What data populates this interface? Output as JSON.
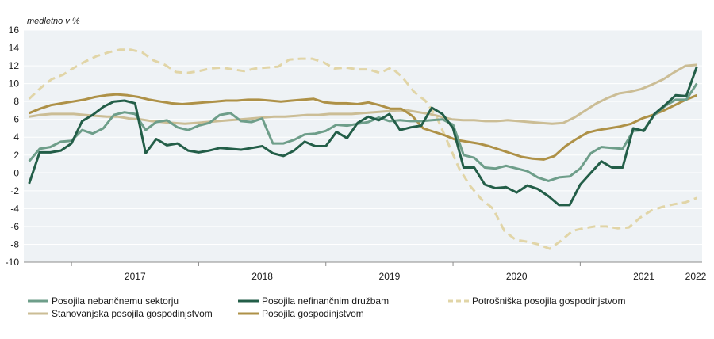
{
  "chart_data": {
    "type": "line",
    "unit_label": "medletno v %",
    "x_tick_labels": [
      "2017",
      "2018",
      "2019",
      "2020",
      "2021",
      "2022"
    ],
    "y_tick_labels": [
      "16",
      "14",
      "12",
      "10",
      "8",
      "6",
      "4",
      "2",
      "0",
      "-2",
      "-4",
      "-6",
      "-8",
      "-10"
    ],
    "ylim": [
      -10,
      16
    ],
    "x_start": "2016-09",
    "x_end": "2021-12",
    "grid": true,
    "legend_position": "bottom",
    "colors": {
      "plot_background": "#eef2f5",
      "grid": "#ffffff"
    },
    "series": [
      {
        "name": "Posojila nebančnemu sektorju",
        "color": "#6e9e8a",
        "dash": "solid",
        "values": [
          1.3,
          2.7,
          2.9,
          3.5,
          3.6,
          4.8,
          4.4,
          5.0,
          6.5,
          6.8,
          6.6,
          4.8,
          5.7,
          5.9,
          5.1,
          4.8,
          5.3,
          5.6,
          6.5,
          6.7,
          5.8,
          5.7,
          6.1,
          3.3,
          3.3,
          3.7,
          4.3,
          4.4,
          4.7,
          5.4,
          5.3,
          5.5,
          5.7,
          6.2,
          5.8,
          5.9,
          5.8,
          5.8,
          5.9,
          6.0,
          5.4,
          2.0,
          1.7,
          0.6,
          0.5,
          0.8,
          0.5,
          0.2,
          -0.5,
          -0.9,
          -0.5,
          -0.4,
          0.5,
          2.2,
          2.9,
          2.8,
          2.7,
          4.7,
          4.8,
          6.5,
          7.5,
          8.2,
          8.2,
          10.0
        ]
      },
      {
        "name": "Posojila nefinančnim družbam",
        "color": "#235e48",
        "dash": "solid",
        "values": [
          -1.2,
          2.3,
          2.3,
          2.5,
          3.3,
          5.8,
          6.5,
          7.4,
          8.0,
          8.1,
          7.8,
          2.2,
          3.8,
          3.1,
          3.3,
          2.5,
          2.3,
          2.5,
          2.8,
          2.7,
          2.6,
          2.8,
          3.0,
          2.2,
          1.9,
          2.5,
          3.5,
          3.0,
          3.0,
          4.6,
          3.9,
          5.6,
          6.3,
          5.9,
          6.6,
          4.8,
          5.1,
          5.3,
          7.3,
          6.6,
          5.0,
          0.6,
          0.6,
          -1.3,
          -1.7,
          -1.6,
          -2.2,
          -1.4,
          -1.8,
          -2.6,
          -3.6,
          -3.6,
          -1.3,
          0.0,
          1.3,
          0.6,
          0.6,
          5.0,
          4.7,
          6.6,
          7.6,
          8.7,
          8.6,
          11.9
        ]
      },
      {
        "name": "Potrošniška posojila gospodinjstvom",
        "color": "#e1d5a7",
        "dash": "dashed",
        "values": [
          8.3,
          9.5,
          10.5,
          11.0,
          11.8,
          12.5,
          13.1,
          13.5,
          13.8,
          13.8,
          13.5,
          12.6,
          12.1,
          11.3,
          11.2,
          11.4,
          11.7,
          11.8,
          11.6,
          11.4,
          11.7,
          11.8,
          11.9,
          12.7,
          12.8,
          12.8,
          12.4,
          11.7,
          11.8,
          11.6,
          11.6,
          11.2,
          11.8,
          10.7,
          9.1,
          8.1,
          6.3,
          3.4,
          0.5,
          -1.5,
          -3.0,
          -4.0,
          -6.5,
          -7.5,
          -7.7,
          -8.0,
          -8.5,
          -7.6,
          -6.5,
          -6.2,
          -6.0,
          -6.0,
          -6.2,
          -6.1,
          -5.0,
          -4.2,
          -3.8,
          -3.5,
          -3.3,
          -2.8
        ]
      },
      {
        "name": "Stanovanjska posojila gospodinjstvom",
        "color": "#cbbd95",
        "dash": "solid",
        "values": [
          6.3,
          6.5,
          6.6,
          6.6,
          6.6,
          6.5,
          6.4,
          6.3,
          6.3,
          6.1,
          6.0,
          5.8,
          5.7,
          5.6,
          5.5,
          5.6,
          5.7,
          5.8,
          5.9,
          6.0,
          6.1,
          6.2,
          6.3,
          6.3,
          6.4,
          6.5,
          6.5,
          6.6,
          6.6,
          6.6,
          6.7,
          6.8,
          6.9,
          7.0,
          7.0,
          6.8,
          6.6,
          6.3,
          6.0,
          5.9,
          5.9,
          5.8,
          5.8,
          5.9,
          5.8,
          5.7,
          5.6,
          5.5,
          5.6,
          6.2,
          7.0,
          7.8,
          8.4,
          8.9,
          9.1,
          9.4,
          9.9,
          10.5,
          11.3,
          12.0,
          12.1
        ]
      },
      {
        "name": "Posojila gospodinjstvom",
        "color": "#ae9147",
        "dash": "solid",
        "values": [
          6.7,
          7.2,
          7.6,
          7.8,
          8.0,
          8.2,
          8.5,
          8.7,
          8.8,
          8.7,
          8.5,
          8.2,
          8.0,
          7.8,
          7.7,
          7.8,
          7.9,
          8.0,
          8.1,
          8.1,
          8.2,
          8.2,
          8.1,
          8.0,
          8.1,
          8.2,
          8.3,
          7.9,
          7.8,
          7.8,
          7.7,
          7.9,
          7.6,
          7.2,
          7.2,
          6.4,
          5.0,
          4.6,
          4.2,
          3.7,
          3.5,
          3.3,
          3.0,
          2.6,
          2.2,
          1.8,
          1.6,
          1.5,
          1.9,
          3.0,
          3.8,
          4.5,
          4.8,
          5.0,
          5.2,
          5.5,
          6.1,
          6.5,
          7.0,
          7.6,
          8.2,
          8.7
        ]
      }
    ]
  }
}
